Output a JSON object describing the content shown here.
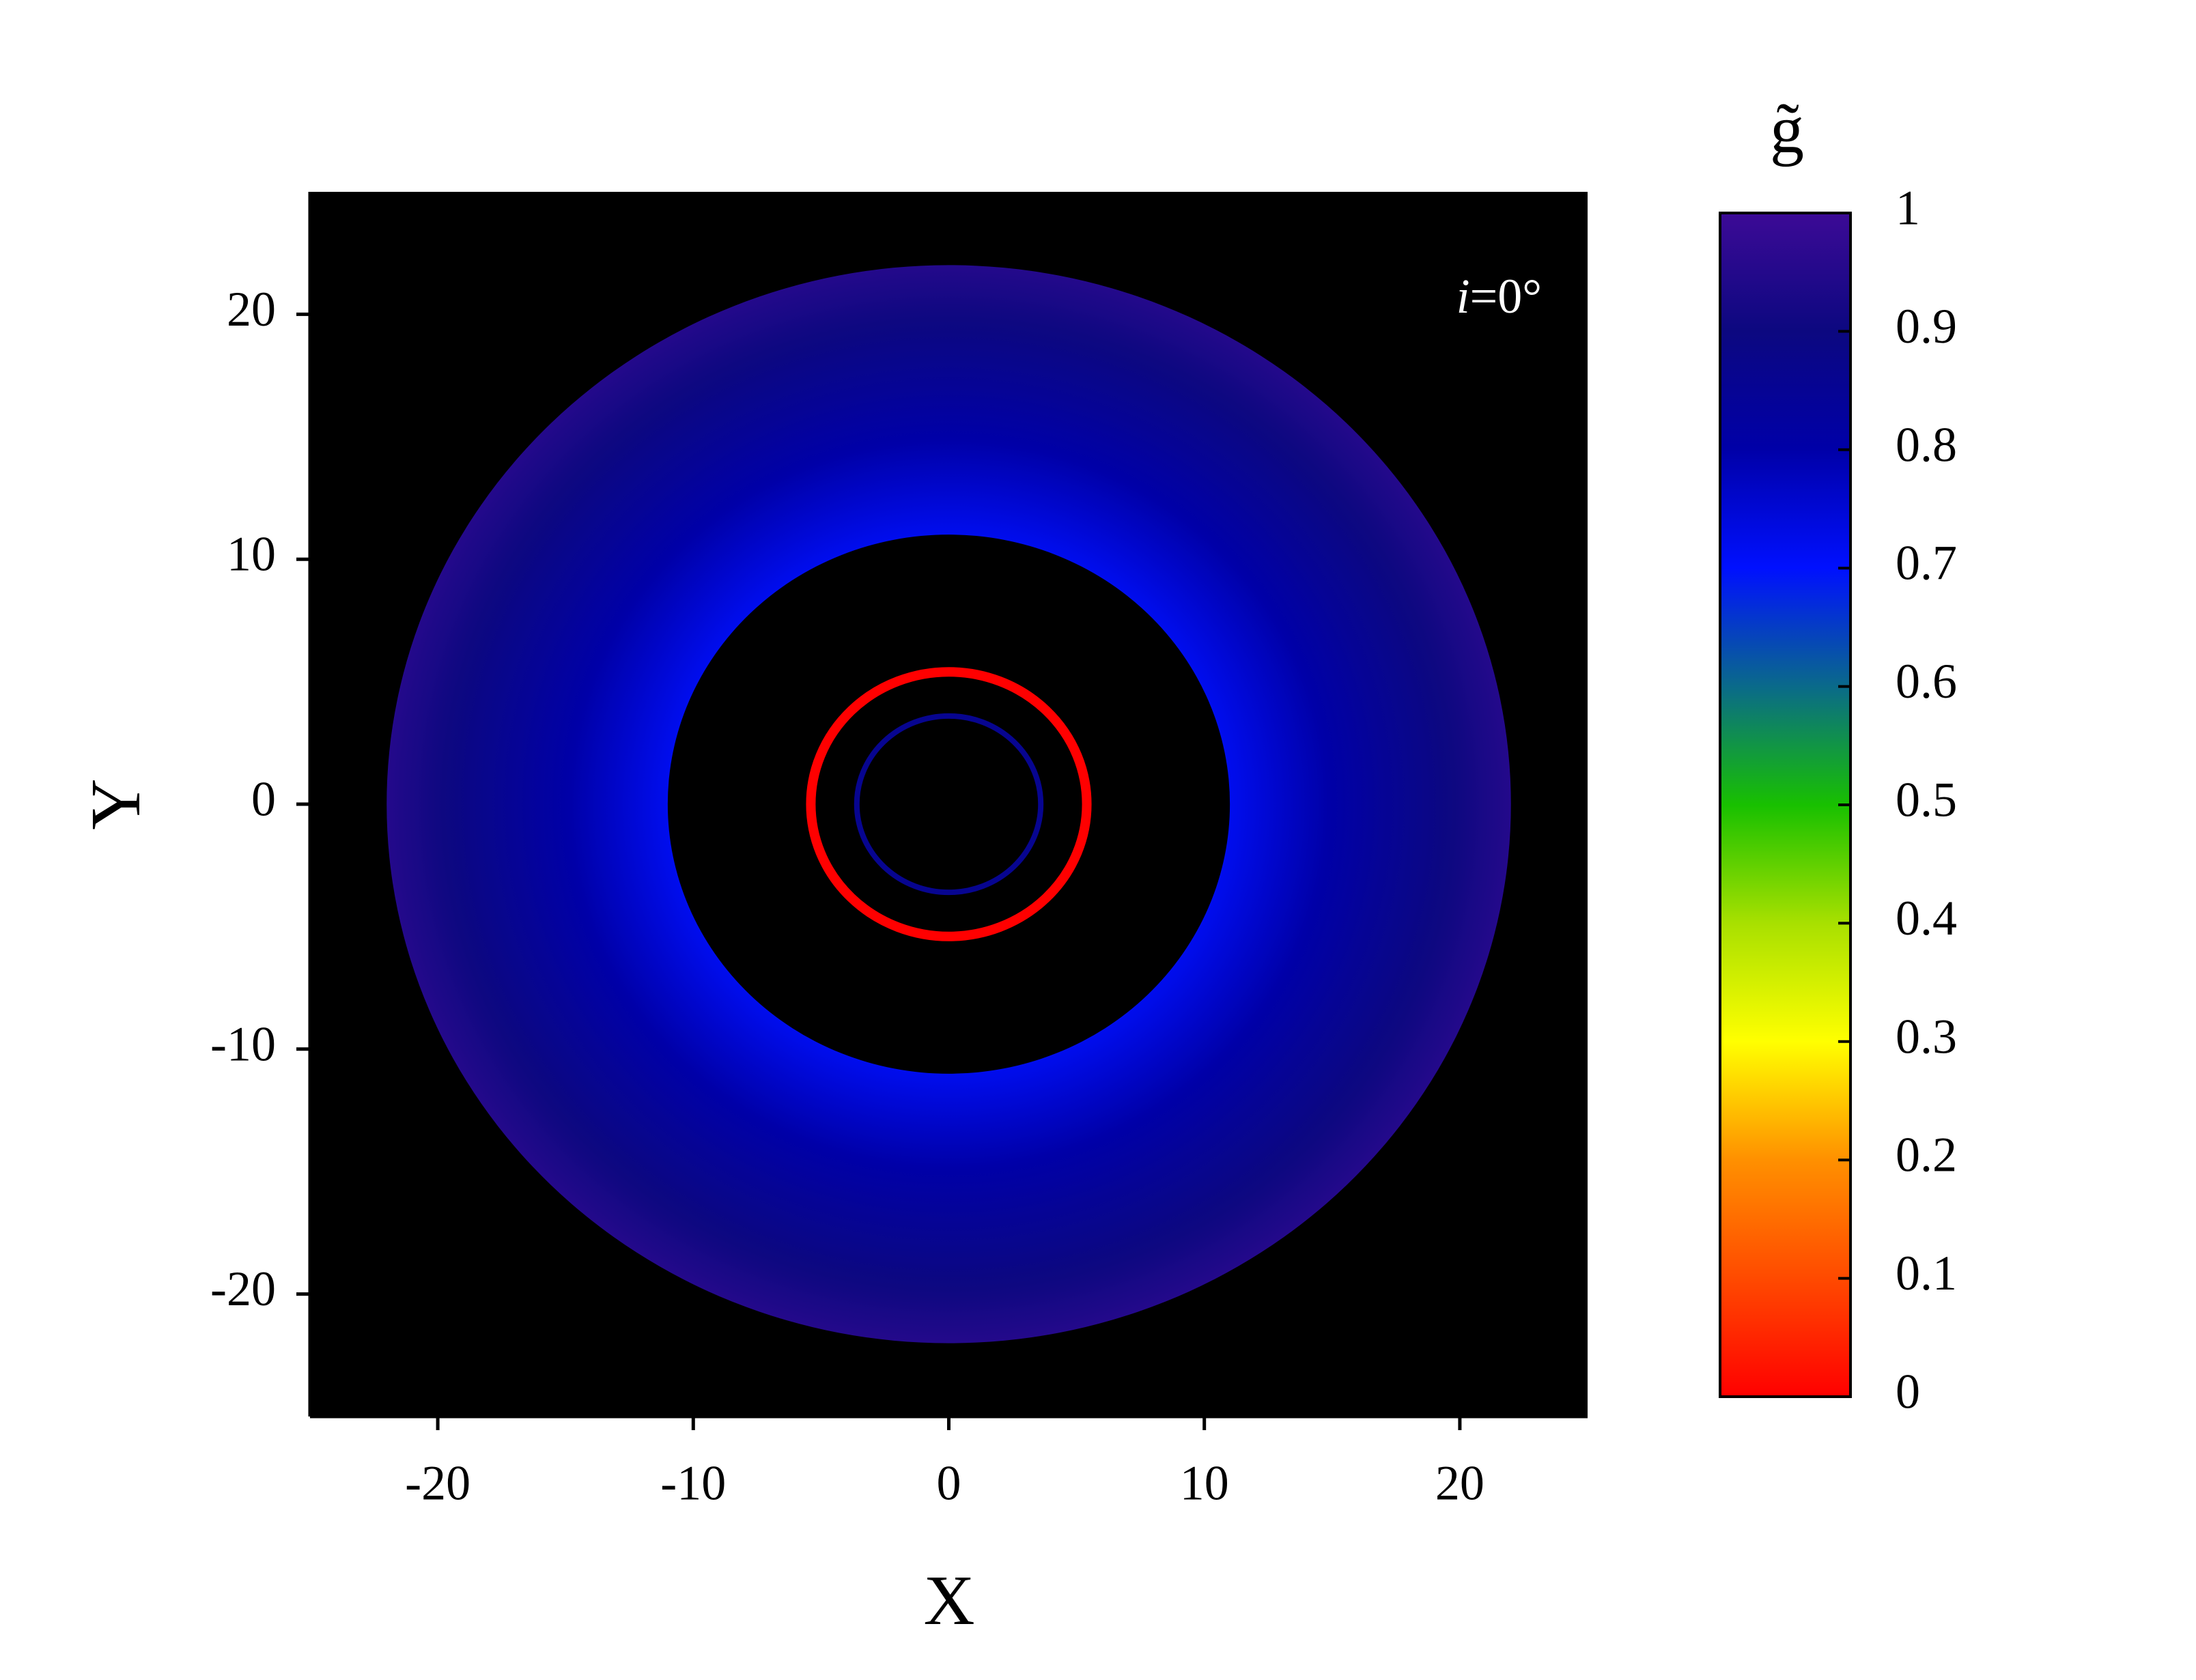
{
  "chart_data": {
    "type": "disk-image",
    "xlabel": "X",
    "ylabel": "Y",
    "annotation": [
      "i",
      "=0°"
    ],
    "xlim": [
      -25,
      25
    ],
    "ylim": [
      -25,
      25
    ],
    "xticks": [
      -20,
      -10,
      0,
      10,
      20
    ],
    "yticks": [
      -20,
      -10,
      0,
      10,
      20
    ],
    "background": "#000000",
    "disk": {
      "r_inner": 11,
      "r_outer": 22,
      "g_inner": 0.72,
      "g_outer": 0.95
    },
    "rings": [
      {
        "r": 5.4,
        "g": 0
      },
      {
        "r": 3.6,
        "g": 0.86
      }
    ],
    "colorbar": {
      "label": "g̃",
      "lim": [
        0,
        1
      ],
      "ticks": [
        0,
        0.1,
        0.2,
        0.3,
        0.4,
        0.5,
        0.6,
        0.7,
        0.8,
        0.9,
        1
      ],
      "colors": [
        "#ff0000",
        "#ff4a00",
        "#ff9000",
        "#ffff00",
        "#a8e000",
        "#18c000",
        "#0a6a8a",
        "#0010ff",
        "#0000a8",
        "#0c0880",
        "#3c0a96"
      ]
    }
  }
}
